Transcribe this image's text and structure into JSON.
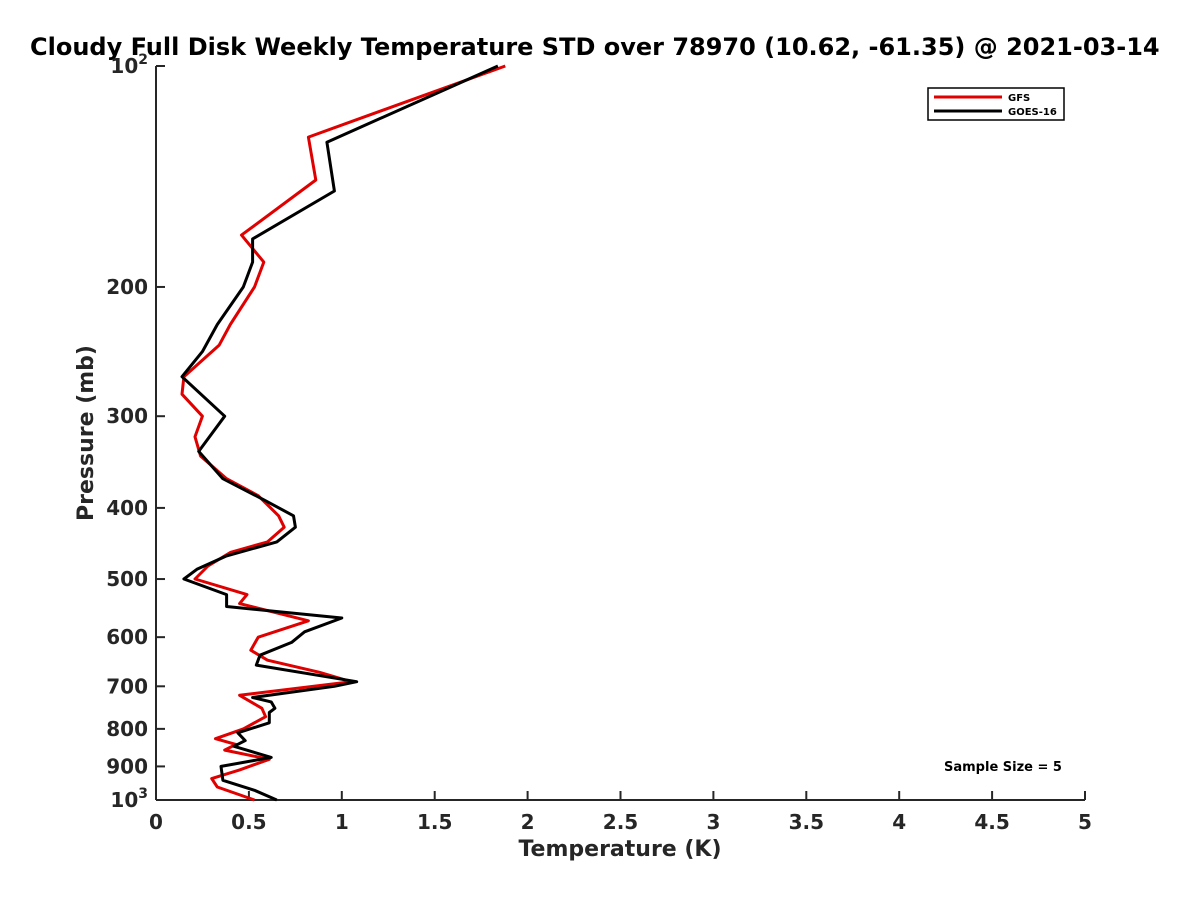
{
  "chart_data": {
    "type": "line",
    "title": "Cloudy Full Disk Weekly Temperature STD over 78970 (10.62, -61.35) @ 2021-03-14",
    "xlabel": "Temperature (K)",
    "ylabel": "Pressure (mb)",
    "xlim": [
      0,
      5
    ],
    "ylim": [
      100,
      1000
    ],
    "y_scale": "log",
    "y_reversed": true,
    "grid": false,
    "legend_position": "top-right",
    "x_ticks": [
      "0",
      "0.5",
      "1",
      "1.5",
      "2",
      "2.5",
      "3",
      "3.5",
      "4",
      "4.5",
      "5"
    ],
    "x_tick_values": [
      0,
      0.5,
      1,
      1.5,
      2,
      2.5,
      3,
      3.5,
      4,
      4.5,
      5
    ],
    "y_ticks": [
      {
        "value": 100,
        "base": "10",
        "exp": "2"
      },
      {
        "value": 200,
        "label": "200"
      },
      {
        "value": 300,
        "label": "300"
      },
      {
        "value": 400,
        "label": "400"
      },
      {
        "value": 500,
        "label": "500"
      },
      {
        "value": 600,
        "label": "600"
      },
      {
        "value": 700,
        "label": "700"
      },
      {
        "value": 800,
        "label": "800"
      },
      {
        "value": 900,
        "label": "900"
      },
      {
        "value": 1000,
        "base": "10",
        "exp": "3"
      }
    ],
    "annotation": "Sample Size = 5",
    "series": [
      {
        "name": "GFS",
        "color": "#e00000",
        "points": [
          [
            1.88,
            100
          ],
          [
            0.82,
            125
          ],
          [
            0.86,
            143
          ],
          [
            0.46,
            170
          ],
          [
            0.58,
            185
          ],
          [
            0.53,
            200
          ],
          [
            0.4,
            225
          ],
          [
            0.34,
            240
          ],
          [
            0.15,
            265
          ],
          [
            0.14,
            280
          ],
          [
            0.25,
            300
          ],
          [
            0.21,
            320
          ],
          [
            0.24,
            340
          ],
          [
            0.38,
            365
          ],
          [
            0.55,
            385
          ],
          [
            0.66,
            410
          ],
          [
            0.69,
            425
          ],
          [
            0.6,
            445
          ],
          [
            0.4,
            460
          ],
          [
            0.28,
            480
          ],
          [
            0.21,
            500
          ],
          [
            0.49,
            525
          ],
          [
            0.45,
            540
          ],
          [
            0.82,
            570
          ],
          [
            0.55,
            600
          ],
          [
            0.51,
            625
          ],
          [
            0.6,
            645
          ],
          [
            0.88,
            670
          ],
          [
            1.05,
            690
          ],
          [
            0.45,
            720
          ],
          [
            0.57,
            750
          ],
          [
            0.59,
            770
          ],
          [
            0.47,
            800
          ],
          [
            0.32,
            825
          ],
          [
            0.43,
            840
          ],
          [
            0.37,
            855
          ],
          [
            0.61,
            880
          ],
          [
            0.45,
            910
          ],
          [
            0.3,
            935
          ],
          [
            0.33,
            960
          ],
          [
            0.53,
            1000
          ]
        ]
      },
      {
        "name": "GOES-16",
        "color": "#000000",
        "points": [
          [
            1.84,
            100
          ],
          [
            0.92,
            127
          ],
          [
            0.96,
            148
          ],
          [
            0.52,
            172
          ],
          [
            0.52,
            185
          ],
          [
            0.47,
            200
          ],
          [
            0.33,
            225
          ],
          [
            0.25,
            245
          ],
          [
            0.14,
            265
          ],
          [
            0.37,
            300
          ],
          [
            0.23,
            335
          ],
          [
            0.36,
            365
          ],
          [
            0.58,
            390
          ],
          [
            0.74,
            410
          ],
          [
            0.75,
            425
          ],
          [
            0.65,
            445
          ],
          [
            0.38,
            465
          ],
          [
            0.22,
            485
          ],
          [
            0.15,
            500
          ],
          [
            0.38,
            525
          ],
          [
            0.38,
            545
          ],
          [
            1.0,
            565
          ],
          [
            0.8,
            590
          ],
          [
            0.73,
            610
          ],
          [
            0.56,
            635
          ],
          [
            0.54,
            655
          ],
          [
            1.08,
            690
          ],
          [
            0.96,
            700
          ],
          [
            0.52,
            725
          ],
          [
            0.62,
            735
          ],
          [
            0.64,
            750
          ],
          [
            0.61,
            760
          ],
          [
            0.61,
            785
          ],
          [
            0.44,
            810
          ],
          [
            0.48,
            830
          ],
          [
            0.42,
            845
          ],
          [
            0.62,
            875
          ],
          [
            0.35,
            900
          ],
          [
            0.36,
            940
          ],
          [
            0.53,
            970
          ],
          [
            0.65,
            1000
          ]
        ]
      }
    ]
  }
}
